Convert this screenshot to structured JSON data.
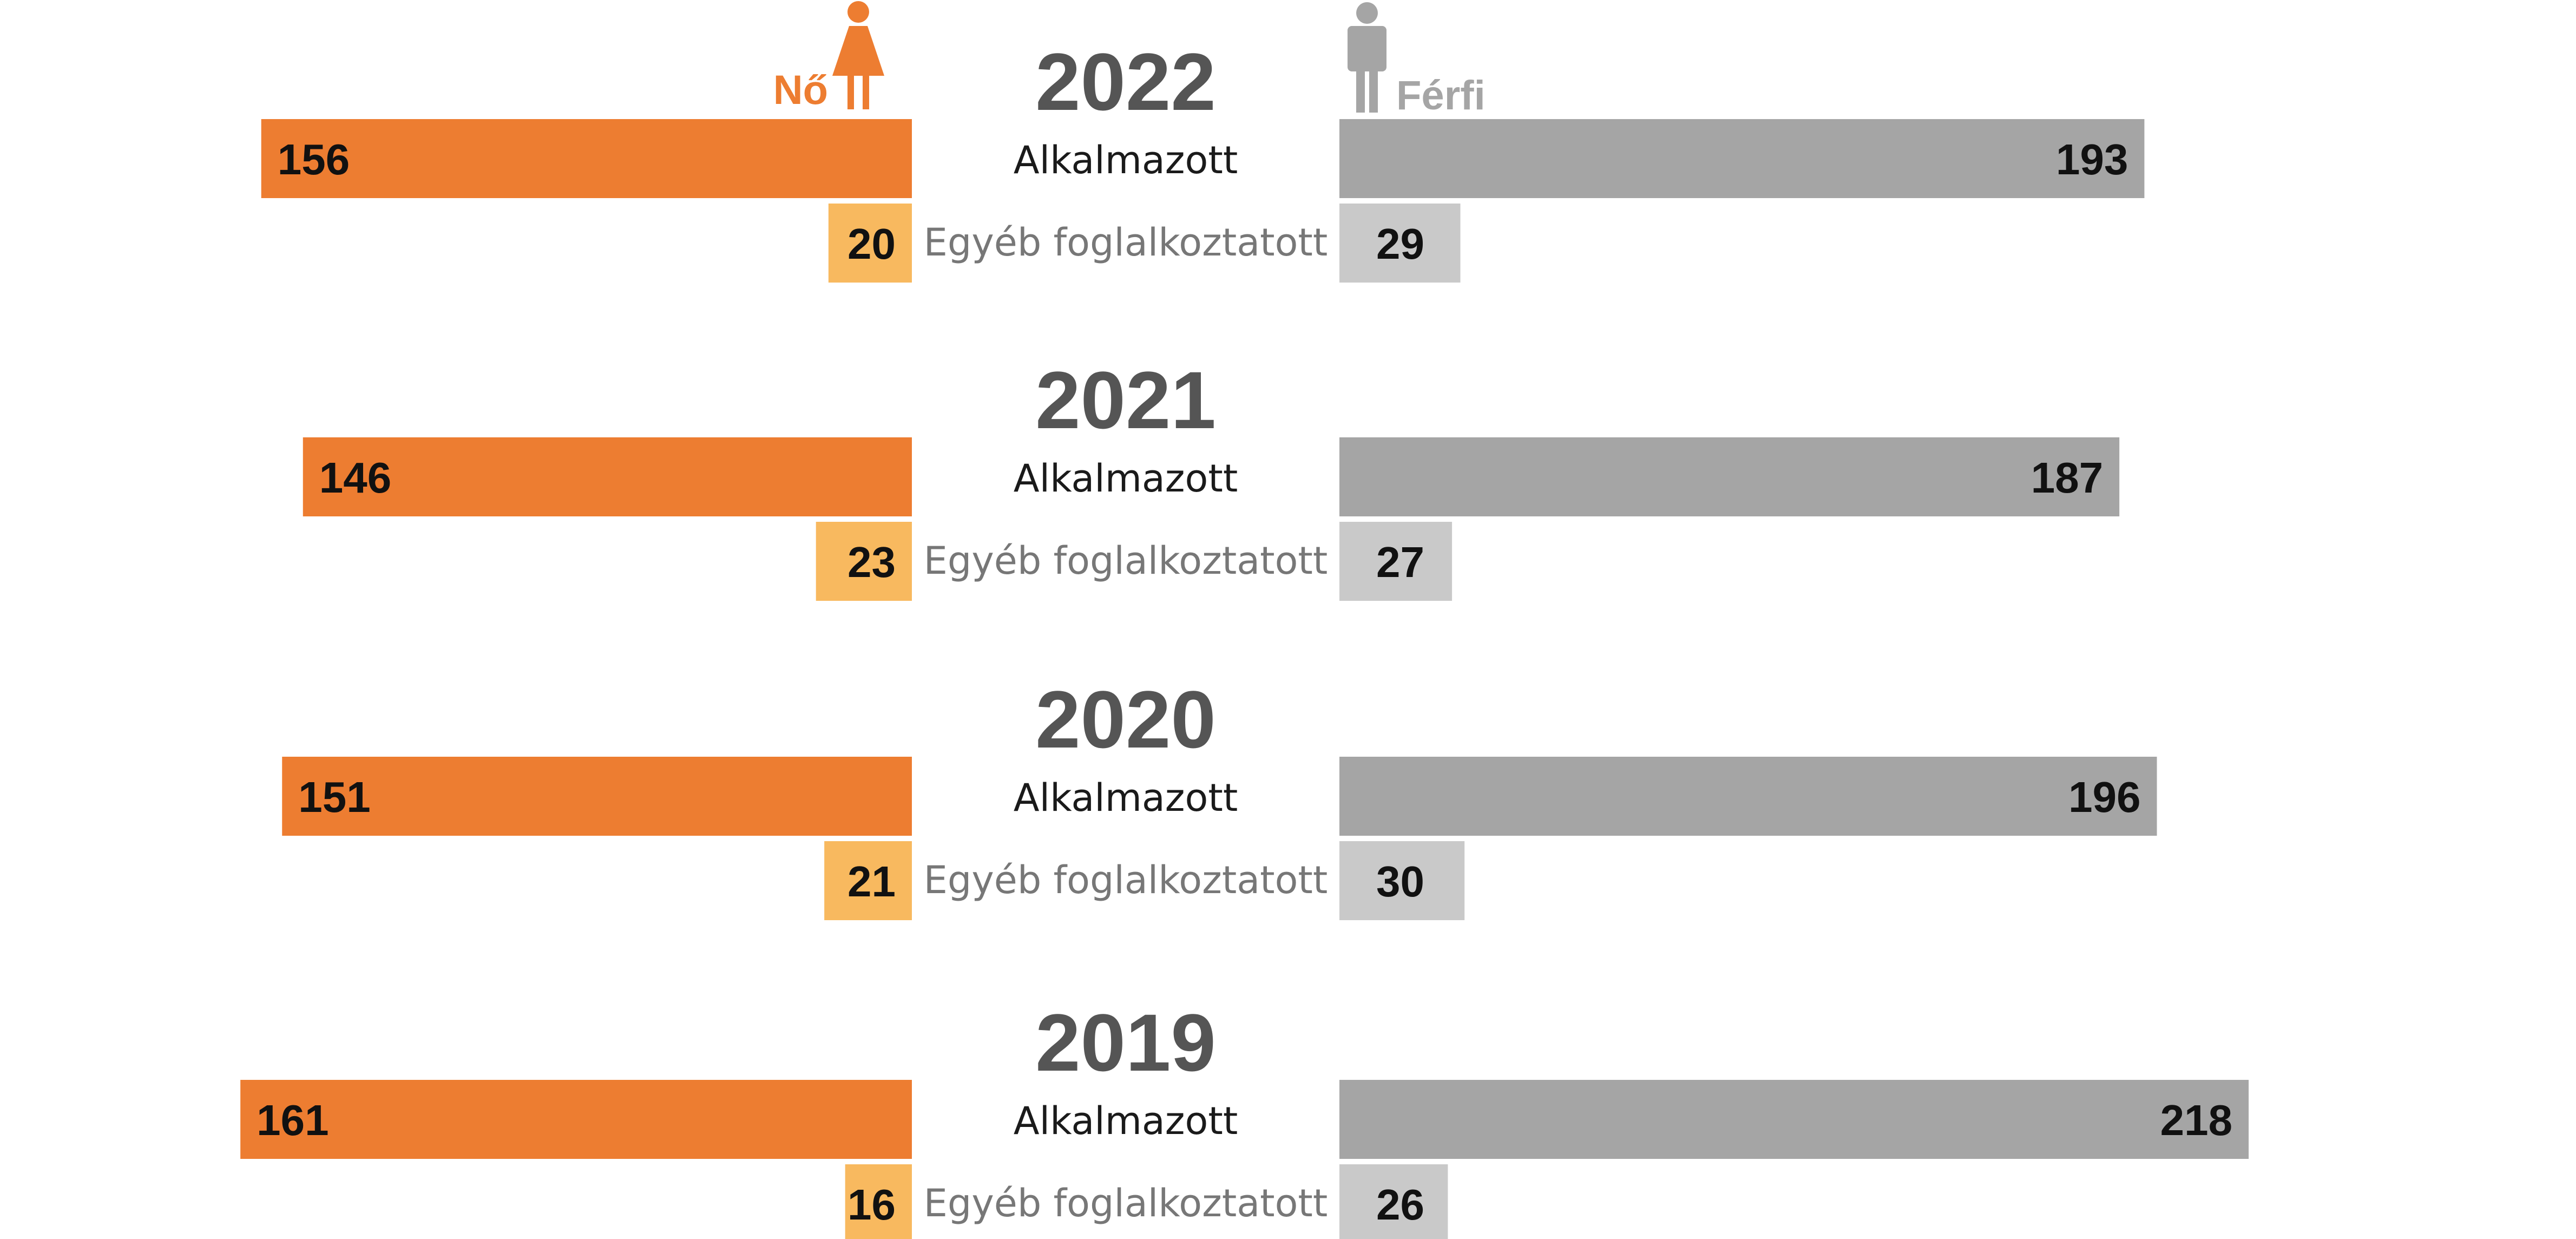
{
  "chart_data": {
    "type": "bar",
    "legend": {
      "female": "Nő",
      "male": "Férfi"
    },
    "categories": [
      "Alkalmazott",
      "Egyéb foglalkoztatott"
    ],
    "years": [
      {
        "year": "2022",
        "female": {
          "employee": 156,
          "other": 20
        },
        "male": {
          "employee": 193,
          "other": 29
        }
      },
      {
        "year": "2021",
        "female": {
          "employee": 146,
          "other": 23
        },
        "male": {
          "employee": 187,
          "other": 27
        }
      },
      {
        "year": "2020",
        "female": {
          "employee": 151,
          "other": 21
        },
        "male": {
          "employee": 196,
          "other": 30
        }
      },
      {
        "year": "2019",
        "female": {
          "employee": 161,
          "other": 16
        },
        "male": {
          "employee": 218,
          "other": 26
        }
      }
    ],
    "colors": {
      "female_employee": "#ED7D31",
      "female_other": "#F8B95F",
      "male_employee": "#A5A5A5",
      "male_other": "#C9C9C9"
    },
    "icons": {
      "female": "woman-icon",
      "male": "man-icon"
    }
  }
}
